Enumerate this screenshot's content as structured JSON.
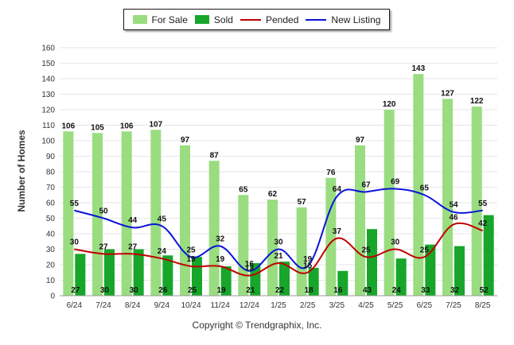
{
  "chart_data": {
    "type": "bar",
    "ylabel": "Number of Homes",
    "ylim": [
      0,
      160
    ],
    "y_ticks": [
      0,
      10,
      20,
      30,
      40,
      50,
      60,
      70,
      80,
      90,
      100,
      110,
      120,
      130,
      140,
      150,
      160
    ],
    "categories": [
      "6/24",
      "7/24",
      "8/24",
      "9/24",
      "10/24",
      "11/24",
      "12/24",
      "1/25",
      "2/25",
      "3/25",
      "4/25",
      "5/25",
      "6/25",
      "7/25",
      "8/25"
    ],
    "series": [
      {
        "name": "For Sale",
        "kind": "bar",
        "color": "#99dd80",
        "values": [
          106,
          105,
          106,
          107,
          97,
          87,
          65,
          62,
          57,
          76,
          97,
          120,
          143,
          127,
          122
        ]
      },
      {
        "name": "Sold",
        "kind": "bar",
        "color": "#17a62a",
        "values": [
          27,
          30,
          30,
          26,
          25,
          19,
          21,
          22,
          18,
          16,
          43,
          24,
          33,
          32,
          52
        ]
      },
      {
        "name": "Pended",
        "kind": "line",
        "color": "#c00000",
        "values": [
          30,
          27,
          27,
          24,
          19,
          19,
          13,
          21,
          15,
          37,
          25,
          30,
          25,
          46,
          42
        ]
      },
      {
        "name": "New Listing",
        "kind": "line",
        "color": "#0a14d8",
        "values": [
          55,
          50,
          44,
          45,
          25,
          32,
          16,
          30,
          19,
          64,
          67,
          69,
          65,
          54,
          55
        ]
      }
    ],
    "grid": true,
    "legend": "top"
  },
  "footer": {
    "copyright": "Copyright © Trendgraphix, Inc."
  }
}
